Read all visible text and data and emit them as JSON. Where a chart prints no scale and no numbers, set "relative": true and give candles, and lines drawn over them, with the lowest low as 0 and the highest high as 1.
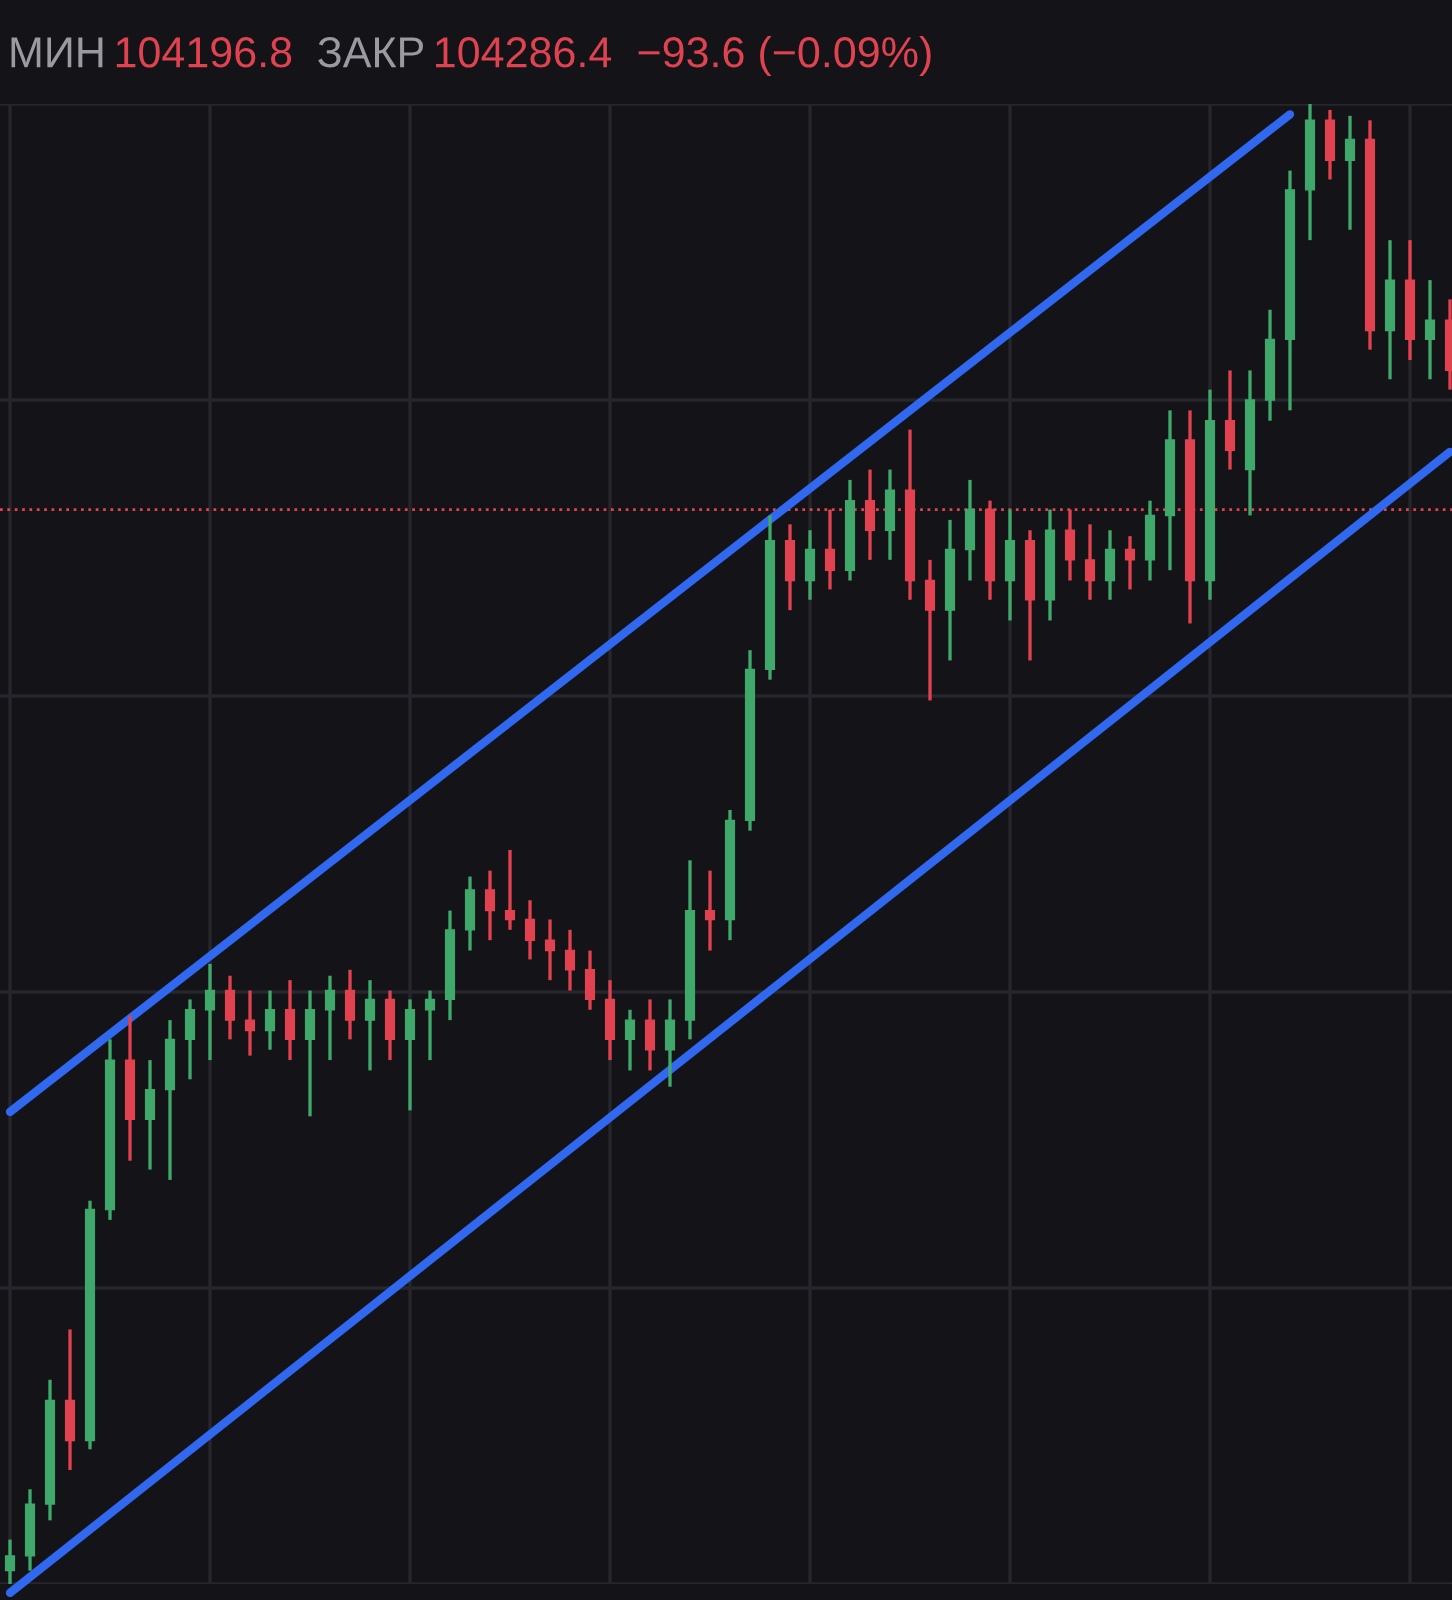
{
  "chart_data": {
    "type": "candlestick",
    "relative": true,
    "grid": true,
    "tick_labels": false,
    "annotations": [
      "МИН",
      "104196.8",
      "ЗАКР",
      "104286.4",
      "−93.6 (−0.09%)"
    ],
    "categories": [
      null,
      null,
      null,
      null,
      null,
      null,
      null,
      null,
      null,
      null,
      null,
      null,
      null,
      null,
      null,
      null,
      null,
      null,
      null,
      null,
      null,
      null,
      null,
      null,
      null,
      null,
      null,
      null,
      null,
      null,
      null,
      null,
      null,
      null,
      null,
      null,
      null,
      null,
      null,
      null,
      null,
      null,
      null,
      null,
      null,
      null,
      null,
      null,
      null,
      null,
      null,
      null,
      null,
      null,
      null,
      null,
      null,
      null,
      null,
      null,
      null,
      null,
      null,
      null,
      null,
      null,
      null,
      null,
      null,
      null,
      null,
      null,
      null
    ],
    "ohlc": [
      [
        0.009,
        0.03,
        0,
        0.019
      ],
      [
        0.019,
        0.064,
        0.009,
        0.054
      ],
      [
        0.054,
        0.138,
        0.043,
        0.124
      ],
      [
        0.124,
        0.172,
        0.077,
        0.097
      ],
      [
        0.097,
        0.259,
        0.091,
        0.253
      ],
      [
        0.253,
        0.368,
        0.246,
        0.354
      ],
      [
        0.354,
        0.384,
        0.286,
        0.314
      ],
      [
        0.314,
        0.354,
        0.28,
        0.334
      ],
      [
        0.334,
        0.381,
        0.273,
        0.368
      ],
      [
        0.368,
        0.395,
        0.341,
        0.388
      ],
      [
        0.388,
        0.419,
        0.354,
        0.401
      ],
      [
        0.401,
        0.411,
        0.368,
        0.381
      ],
      [
        0.381,
        0.401,
        0.357,
        0.374
      ],
      [
        0.374,
        0.401,
        0.361,
        0.388
      ],
      [
        0.388,
        0.408,
        0.354,
        0.368
      ],
      [
        0.368,
        0.401,
        0.316,
        0.388
      ],
      [
        0.388,
        0.411,
        0.354,
        0.401
      ],
      [
        0.401,
        0.415,
        0.368,
        0.381
      ],
      [
        0.381,
        0.408,
        0.347,
        0.395
      ],
      [
        0.395,
        0.401,
        0.354,
        0.368
      ],
      [
        0.368,
        0.395,
        0.32,
        0.388
      ],
      [
        0.388,
        0.401,
        0.354,
        0.395
      ],
      [
        0.395,
        0.455,
        0.381,
        0.442
      ],
      [
        0.442,
        0.478,
        0.428,
        0.469
      ],
      [
        0.469,
        0.482,
        0.435,
        0.455
      ],
      [
        0.455,
        0.496,
        0.442,
        0.449
      ],
      [
        0.449,
        0.462,
        0.422,
        0.435
      ],
      [
        0.435,
        0.449,
        0.408,
        0.428
      ],
      [
        0.428,
        0.442,
        0.401,
        0.415
      ],
      [
        0.415,
        0.428,
        0.388,
        0.395
      ],
      [
        0.395,
        0.408,
        0.354,
        0.368
      ],
      [
        0.368,
        0.388,
        0.347,
        0.381
      ],
      [
        0.381,
        0.395,
        0.347,
        0.361
      ],
      [
        0.361,
        0.395,
        0.336,
        0.381
      ],
      [
        0.381,
        0.489,
        0.368,
        0.455
      ],
      [
        0.455,
        0.482,
        0.428,
        0.449
      ],
      [
        0.449,
        0.523,
        0.435,
        0.516
      ],
      [
        0.516,
        0.631,
        0.509,
        0.618
      ],
      [
        0.618,
        0.722,
        0.611,
        0.705
      ],
      [
        0.705,
        0.716,
        0.658,
        0.678
      ],
      [
        0.678,
        0.712,
        0.665,
        0.699
      ],
      [
        0.699,
        0.726,
        0.672,
        0.685
      ],
      [
        0.685,
        0.746,
        0.678,
        0.732
      ],
      [
        0.732,
        0.753,
        0.692,
        0.712
      ],
      [
        0.712,
        0.753,
        0.692,
        0.739
      ],
      [
        0.739,
        0.78,
        0.665,
        0.678
      ],
      [
        0.678,
        0.692,
        0.597,
        0.658
      ],
      [
        0.658,
        0.719,
        0.624,
        0.699
      ],
      [
        0.699,
        0.746,
        0.678,
        0.726
      ],
      [
        0.726,
        0.732,
        0.665,
        0.678
      ],
      [
        0.678,
        0.726,
        0.651,
        0.705
      ],
      [
        0.705,
        0.712,
        0.624,
        0.665
      ],
      [
        0.665,
        0.726,
        0.651,
        0.712
      ],
      [
        0.712,
        0.726,
        0.678,
        0.692
      ],
      [
        0.692,
        0.716,
        0.665,
        0.678
      ],
      [
        0.678,
        0.712,
        0.665,
        0.699
      ],
      [
        0.699,
        0.708,
        0.672,
        0.692
      ],
      [
        0.692,
        0.732,
        0.678,
        0.722
      ],
      [
        0.722,
        0.793,
        0.685,
        0.773
      ],
      [
        0.773,
        0.793,
        0.649,
        0.678
      ],
      [
        0.678,
        0.807,
        0.665,
        0.786
      ],
      [
        0.786,
        0.82,
        0.753,
        0.766
      ],
      [
        0.753,
        0.82,
        0.722,
        0.8
      ],
      [
        0.8,
        0.861,
        0.786,
        0.841
      ],
      [
        0.841,
        0.955,
        0.793,
        0.942
      ],
      [
        0.942,
        1.0,
        0.908,
        0.989
      ],
      [
        0.989,
        0.996,
        0.949,
        0.962
      ],
      [
        0.962,
        0.992,
        0.915,
        0.976
      ],
      [
        0.976,
        0.989,
        0.834,
        0.847
      ],
      [
        0.847,
        0.908,
        0.814,
        0.881
      ],
      [
        0.881,
        0.908,
        0.827,
        0.841
      ],
      [
        0.841,
        0.881,
        0.814,
        0.854
      ],
      [
        0.854,
        0.868,
        0.807,
        0.82
      ]
    ],
    "colors": [
      "#3fa86a",
      "#3fa86a",
      "#3fa86a",
      "#e0434f",
      "#3fa86a",
      "#3fa86a",
      "#e0434f",
      "#3fa86a",
      "#3fa86a",
      "#3fa86a",
      "#3fa86a",
      "#e0434f",
      "#e0434f",
      "#3fa86a",
      "#e0434f",
      "#3fa86a",
      "#3fa86a",
      "#e0434f",
      "#3fa86a",
      "#e0434f",
      "#3fa86a",
      "#3fa86a",
      "#3fa86a",
      "#3fa86a",
      "#e0434f",
      "#e0434f",
      "#e0434f",
      "#e0434f",
      "#e0434f",
      "#e0434f",
      "#e0434f",
      "#3fa86a",
      "#e0434f",
      "#3fa86a",
      "#3fa86a",
      "#e0434f",
      "#3fa86a",
      "#3fa86a",
      "#3fa86a",
      "#e0434f",
      "#3fa86a",
      "#e0434f",
      "#3fa86a",
      "#e0434f",
      "#3fa86a",
      "#e0434f",
      "#e0434f",
      "#3fa86a",
      "#3fa86a",
      "#e0434f",
      "#3fa86a",
      "#e0434f",
      "#3fa86a",
      "#e0434f",
      "#e0434f",
      "#3fa86a",
      "#e0434f",
      "#3fa86a",
      "#3fa86a",
      "#e0434f",
      "#3fa86a",
      "#e0434f",
      "#3fa86a",
      "#3fa86a",
      "#3fa86a",
      "#3fa86a",
      "#e0434f",
      "#3fa86a",
      "#e0434f",
      "#3fa86a",
      "#e0434f",
      "#3fa86a",
      "#e0434f"
    ],
    "series": [
      {
        "type": "line",
        "color": "#3068f0",
        "values": [
          0.319,
          null,
          null,
          null,
          null,
          null,
          null,
          null,
          null,
          null,
          null,
          null,
          null,
          null,
          null,
          null,
          null,
          null,
          null,
          null,
          null,
          null,
          null,
          null,
          null,
          null,
          null,
          null,
          null,
          null,
          null,
          null,
          null,
          null,
          null,
          null,
          null,
          null,
          null,
          null,
          null,
          null,
          null,
          null,
          null,
          null,
          null,
          null,
          null,
          null,
          null,
          null,
          null,
          null,
          null,
          null,
          null,
          null,
          null,
          null,
          null,
          null,
          null,
          null,
          0.993,
          null,
          null,
          null,
          null,
          null,
          null,
          null,
          null
        ]
      },
      {
        "type": "line",
        "color": "#3068f0",
        "values": [
          -0.006,
          null,
          null,
          null,
          null,
          null,
          null,
          null,
          null,
          null,
          null,
          null,
          null,
          null,
          null,
          null,
          null,
          null,
          null,
          null,
          null,
          null,
          null,
          null,
          null,
          null,
          null,
          null,
          null,
          null,
          null,
          null,
          null,
          null,
          null,
          null,
          null,
          null,
          null,
          null,
          null,
          null,
          null,
          null,
          null,
          null,
          null,
          null,
          null,
          null,
          null,
          null,
          null,
          null,
          null,
          null,
          null,
          null,
          null,
          null,
          null,
          null,
          null,
          null,
          null,
          null,
          null,
          null,
          null,
          null,
          null,
          null,
          0.765
        ]
      }
    ],
    "ref_lines": [
      {
        "axis": "y",
        "value": 0.726,
        "color": "#e0434f",
        "line_style": "dotted"
      }
    ]
  }
}
